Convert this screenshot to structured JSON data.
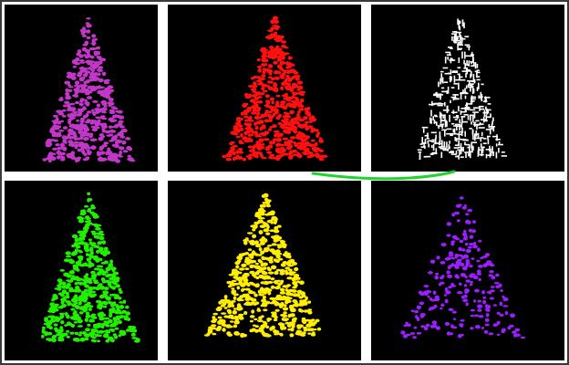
{
  "panels": [
    {
      "color": "#c236c8",
      "shape": "dense"
    },
    {
      "color": "#ff1010",
      "shape": "dense"
    },
    {
      "color": "#ffffff",
      "shape": "streaky"
    },
    {
      "color": "#22ee00",
      "shape": "dense"
    },
    {
      "color": "#ffee00",
      "shape": "dense"
    },
    {
      "color": "#9a1fff",
      "shape": "sparse"
    }
  ],
  "overlay_stroke_color": "#1ed62a",
  "frame_color": "#3a3a3a",
  "background_color": "#000000"
}
